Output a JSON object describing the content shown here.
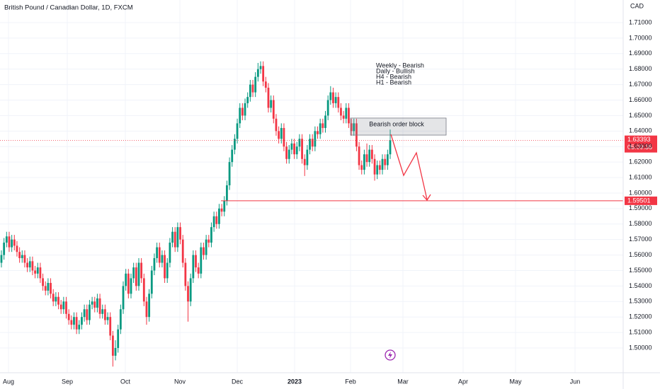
{
  "chart_data": {
    "type": "candlestick",
    "title": "British Pound / Canadian Dollar, 1D, FXCM",
    "currency": "CAD",
    "up_color": "#089981",
    "down_color": "#f23645",
    "ylim": [
      1.49,
      1.72
    ],
    "yticks": [
      {
        "value": 1.5,
        "label": "1.50000"
      },
      {
        "value": 1.51,
        "label": "1.51000"
      },
      {
        "value": 1.52,
        "label": "1.52000"
      },
      {
        "value": 1.53,
        "label": "1.53000"
      },
      {
        "value": 1.54,
        "label": "1.54000"
      },
      {
        "value": 1.55,
        "label": "1.55000"
      },
      {
        "value": 1.56,
        "label": "1.56000"
      },
      {
        "value": 1.57,
        "label": "1.57000"
      },
      {
        "value": 1.58,
        "label": "1.58000"
      },
      {
        "value": 1.59,
        "label": "1.59000"
      },
      {
        "value": 1.6,
        "label": "1.60000"
      },
      {
        "value": 1.61,
        "label": "1.61000"
      },
      {
        "value": 1.62,
        "label": "1.62000"
      },
      {
        "value": 1.63,
        "label": "1.63000"
      },
      {
        "value": 1.64,
        "label": "1.64000"
      },
      {
        "value": 1.65,
        "label": "1.65000"
      },
      {
        "value": 1.66,
        "label": "1.66000"
      },
      {
        "value": 1.67,
        "label": "1.67000"
      },
      {
        "value": 1.68,
        "label": "1.68000"
      },
      {
        "value": 1.69,
        "label": "1.69000"
      },
      {
        "value": 1.7,
        "label": "1.70000"
      },
      {
        "value": 1.71,
        "label": "1.71000"
      }
    ],
    "xticks": [
      "Aug",
      "Sep",
      "Oct",
      "Nov",
      "Dec",
      "2023",
      "Feb",
      "Mar",
      "Apr",
      "May",
      "Jun"
    ],
    "annotations": [
      "Weekly - Bearish",
      "Daily - Bullish",
      "H4 - Bearish",
      "H1 - Bearish"
    ],
    "order_block": {
      "label": "Bearish order block",
      "top": 1.6484,
      "bottom": 1.6374
    },
    "current_price": {
      "value": 1.63393,
      "countdown": "05:09:36"
    },
    "target_level": 1.59501,
    "candles": [
      [
        1.555,
        1.563,
        1.552,
        1.56
      ],
      [
        1.56,
        1.571,
        1.557,
        1.568
      ],
      [
        1.568,
        1.575,
        1.565,
        1.572
      ],
      [
        1.572,
        1.575,
        1.562,
        1.565
      ],
      [
        1.565,
        1.573,
        1.562,
        1.57
      ],
      [
        1.57,
        1.573,
        1.563,
        1.566
      ],
      [
        1.566,
        1.569,
        1.559,
        1.562
      ],
      [
        1.562,
        1.565,
        1.555,
        1.558
      ],
      [
        1.558,
        1.563,
        1.555,
        1.56
      ],
      [
        1.56,
        1.563,
        1.552,
        1.555
      ],
      [
        1.555,
        1.558,
        1.549,
        1.552
      ],
      [
        1.552,
        1.559,
        1.549,
        1.556
      ],
      [
        1.556,
        1.559,
        1.547,
        1.55
      ],
      [
        1.55,
        1.553,
        1.545,
        1.548
      ],
      [
        1.548,
        1.555,
        1.545,
        1.552
      ],
      [
        1.552,
        1.555,
        1.542,
        1.545
      ],
      [
        1.545,
        1.548,
        1.537,
        1.54
      ],
      [
        1.54,
        1.543,
        1.534,
        1.537
      ],
      [
        1.537,
        1.545,
        1.534,
        1.542
      ],
      [
        1.542,
        1.545,
        1.532,
        1.535
      ],
      [
        1.535,
        1.538,
        1.527,
        1.53
      ],
      [
        1.53,
        1.536,
        1.527,
        1.533
      ],
      [
        1.533,
        1.536,
        1.525,
        1.528
      ],
      [
        1.528,
        1.531,
        1.522,
        1.525
      ],
      [
        1.525,
        1.533,
        1.522,
        1.53
      ],
      [
        1.53,
        1.533,
        1.519,
        1.522
      ],
      [
        1.522,
        1.525,
        1.515,
        1.518
      ],
      [
        1.518,
        1.521,
        1.512,
        1.515
      ],
      [
        1.515,
        1.523,
        1.512,
        1.52
      ],
      [
        1.52,
        1.523,
        1.509,
        1.512
      ],
      [
        1.512,
        1.518,
        1.509,
        1.515
      ],
      [
        1.515,
        1.523,
        1.512,
        1.52
      ],
      [
        1.52,
        1.528,
        1.517,
        1.525
      ],
      [
        1.525,
        1.528,
        1.515,
        1.518
      ],
      [
        1.518,
        1.531,
        1.515,
        1.528
      ],
      [
        1.528,
        1.533,
        1.525,
        1.53
      ],
      [
        1.53,
        1.533,
        1.523,
        1.526
      ],
      [
        1.526,
        1.535,
        1.523,
        1.532
      ],
      [
        1.532,
        1.535,
        1.519,
        1.522
      ],
      [
        1.522,
        1.528,
        1.519,
        1.525
      ],
      [
        1.525,
        1.528,
        1.515,
        1.518
      ],
      [
        1.518,
        1.523,
        1.515,
        1.52
      ],
      [
        1.52,
        1.523,
        1.505,
        1.508
      ],
      [
        1.508,
        1.511,
        1.488,
        1.495
      ],
      [
        1.495,
        1.505,
        1.492,
        1.5
      ],
      [
        1.5,
        1.515,
        1.497,
        1.512
      ],
      [
        1.512,
        1.528,
        1.509,
        1.525
      ],
      [
        1.525,
        1.543,
        1.522,
        1.54
      ],
      [
        1.54,
        1.551,
        1.537,
        1.548
      ],
      [
        1.548,
        1.551,
        1.532,
        1.535
      ],
      [
        1.535,
        1.548,
        1.532,
        1.545
      ],
      [
        1.545,
        1.555,
        1.542,
        1.552
      ],
      [
        1.552,
        1.555,
        1.537,
        1.54
      ],
      [
        1.54,
        1.558,
        1.537,
        1.555
      ],
      [
        1.555,
        1.558,
        1.542,
        1.545
      ],
      [
        1.545,
        1.548,
        1.527,
        1.53
      ],
      [
        1.53,
        1.533,
        1.515,
        1.52
      ],
      [
        1.52,
        1.538,
        1.517,
        1.535
      ],
      [
        1.535,
        1.553,
        1.532,
        1.55
      ],
      [
        1.55,
        1.561,
        1.547,
        1.558
      ],
      [
        1.558,
        1.568,
        1.555,
        1.565
      ],
      [
        1.565,
        1.568,
        1.552,
        1.555
      ],
      [
        1.555,
        1.563,
        1.552,
        1.56
      ],
      [
        1.56,
        1.563,
        1.542,
        1.545
      ],
      [
        1.545,
        1.558,
        1.542,
        1.555
      ],
      [
        1.555,
        1.571,
        1.552,
        1.568
      ],
      [
        1.568,
        1.578,
        1.565,
        1.575
      ],
      [
        1.575,
        1.578,
        1.562,
        1.565
      ],
      [
        1.565,
        1.581,
        1.562,
        1.578
      ],
      [
        1.578,
        1.581,
        1.567,
        1.57
      ],
      [
        1.57,
        1.573,
        1.552,
        1.555
      ],
      [
        1.555,
        1.558,
        1.537,
        1.54
      ],
      [
        1.54,
        1.543,
        1.517,
        1.53
      ],
      [
        1.53,
        1.548,
        1.527,
        1.545
      ],
      [
        1.545,
        1.563,
        1.542,
        1.56
      ],
      [
        1.56,
        1.563,
        1.549,
        1.552
      ],
      [
        1.552,
        1.555,
        1.545,
        1.548
      ],
      [
        1.548,
        1.568,
        1.545,
        1.565
      ],
      [
        1.565,
        1.568,
        1.557,
        1.56
      ],
      [
        1.56,
        1.573,
        1.557,
        1.57
      ],
      [
        1.57,
        1.573,
        1.565,
        1.568
      ],
      [
        1.568,
        1.581,
        1.565,
        1.578
      ],
      [
        1.578,
        1.588,
        1.575,
        1.585
      ],
      [
        1.585,
        1.588,
        1.577,
        1.58
      ],
      [
        1.58,
        1.593,
        1.577,
        1.59
      ],
      [
        1.59,
        1.593,
        1.585,
        1.588
      ],
      [
        1.588,
        1.598,
        1.585,
        1.595
      ],
      [
        1.595,
        1.608,
        1.592,
        1.605
      ],
      [
        1.605,
        1.623,
        1.602,
        1.62
      ],
      [
        1.62,
        1.631,
        1.617,
        1.628
      ],
      [
        1.628,
        1.638,
        1.625,
        1.635
      ],
      [
        1.635,
        1.648,
        1.632,
        1.645
      ],
      [
        1.645,
        1.658,
        1.642,
        1.655
      ],
      [
        1.655,
        1.658,
        1.647,
        1.65
      ],
      [
        1.65,
        1.661,
        1.647,
        1.658
      ],
      [
        1.658,
        1.665,
        1.655,
        1.662
      ],
      [
        1.662,
        1.673,
        1.659,
        1.67
      ],
      [
        1.67,
        1.673,
        1.662,
        1.665
      ],
      [
        1.665,
        1.678,
        1.662,
        1.675
      ],
      [
        1.675,
        1.684,
        1.672,
        1.68
      ],
      [
        1.68,
        1.685,
        1.677,
        1.682
      ],
      [
        1.682,
        1.685,
        1.669,
        1.672
      ],
      [
        1.672,
        1.675,
        1.665,
        1.668
      ],
      [
        1.668,
        1.671,
        1.652,
        1.655
      ],
      [
        1.655,
        1.663,
        1.652,
        1.66
      ],
      [
        1.66,
        1.663,
        1.645,
        1.648
      ],
      [
        1.648,
        1.651,
        1.637,
        1.64
      ],
      [
        1.64,
        1.643,
        1.632,
        1.635
      ],
      [
        1.635,
        1.645,
        1.632,
        1.642
      ],
      [
        1.642,
        1.645,
        1.627,
        1.63
      ],
      [
        1.63,
        1.633,
        1.619,
        1.622
      ],
      [
        1.622,
        1.631,
        1.619,
        1.628
      ],
      [
        1.628,
        1.635,
        1.625,
        1.632
      ],
      [
        1.632,
        1.635,
        1.622,
        1.625
      ],
      [
        1.625,
        1.633,
        1.622,
        1.63
      ],
      [
        1.63,
        1.638,
        1.627,
        1.635
      ],
      [
        1.635,
        1.638,
        1.619,
        1.622
      ],
      [
        1.622,
        1.625,
        1.611,
        1.618
      ],
      [
        1.618,
        1.631,
        1.615,
        1.628
      ],
      [
        1.628,
        1.638,
        1.625,
        1.635
      ],
      [
        1.635,
        1.638,
        1.627,
        1.63
      ],
      [
        1.63,
        1.643,
        1.627,
        1.64
      ],
      [
        1.64,
        1.643,
        1.635,
        1.638
      ],
      [
        1.638,
        1.648,
        1.635,
        1.645
      ],
      [
        1.645,
        1.648,
        1.639,
        1.642
      ],
      [
        1.642,
        1.653,
        1.639,
        1.65
      ],
      [
        1.65,
        1.663,
        1.647,
        1.66
      ],
      [
        1.66,
        1.669,
        1.657,
        1.665
      ],
      [
        1.665,
        1.668,
        1.655,
        1.658
      ],
      [
        1.658,
        1.665,
        1.655,
        1.662
      ],
      [
        1.662,
        1.665,
        1.652,
        1.655
      ],
      [
        1.655,
        1.658,
        1.647,
        1.65
      ],
      [
        1.65,
        1.653,
        1.645,
        1.648
      ],
      [
        1.648,
        1.658,
        1.645,
        1.655
      ],
      [
        1.655,
        1.658,
        1.642,
        1.645
      ],
      [
        1.645,
        1.648,
        1.637,
        1.64
      ],
      [
        1.64,
        1.648,
        1.637,
        1.645
      ],
      [
        1.645,
        1.648,
        1.627,
        1.63
      ],
      [
        1.63,
        1.633,
        1.615,
        1.618
      ],
      [
        1.618,
        1.621,
        1.612,
        1.615
      ],
      [
        1.615,
        1.628,
        1.612,
        1.625
      ],
      [
        1.625,
        1.632,
        1.617,
        1.62
      ],
      [
        1.62,
        1.631,
        1.617,
        1.628
      ],
      [
        1.628,
        1.631,
        1.619,
        1.622
      ],
      [
        1.622,
        1.625,
        1.608,
        1.612
      ],
      [
        1.612,
        1.621,
        1.609,
        1.618
      ],
      [
        1.618,
        1.621,
        1.612,
        1.615
      ],
      [
        1.615,
        1.625,
        1.612,
        1.622
      ],
      [
        1.622,
        1.625,
        1.615,
        1.618
      ],
      [
        1.618,
        1.628,
        1.615,
        1.625
      ],
      [
        1.625,
        1.641,
        1.622,
        1.634
      ]
    ]
  }
}
